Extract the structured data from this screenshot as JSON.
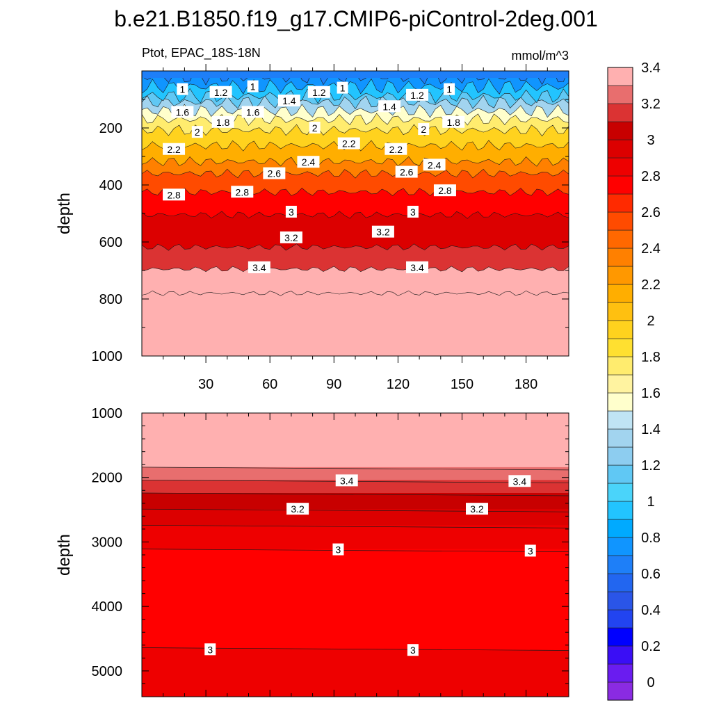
{
  "title": "b.e21.B1850.f19_g17.CMIP6-piControl-2deg.001",
  "subtitle_left": "Ptot, EPAC_18S-18N",
  "subtitle_right": "mmol/m^3",
  "chart_data": [
    {
      "type": "contour",
      "panel": "upper",
      "title": "Ptot, EPAC_18S-18N",
      "units": "mmol/m^3",
      "xlabel": "",
      "ylabel": "depth",
      "xlim": [
        0,
        200
      ],
      "ylim": [
        1000,
        0
      ],
      "xticks": [
        30,
        60,
        90,
        120,
        150,
        180
      ],
      "yticks": [
        200,
        400,
        600,
        800,
        1000
      ],
      "contour_depths": [
        {
          "level": 0.8,
          "depth": 20
        },
        {
          "level": 1.0,
          "depth": 55
        },
        {
          "level": 1.2,
          "depth": 88
        },
        {
          "level": 1.4,
          "depth": 110
        },
        {
          "level": 1.6,
          "depth": 140
        },
        {
          "level": 1.8,
          "depth": 170
        },
        {
          "level": 2.0,
          "depth": 208
        },
        {
          "level": 2.2,
          "depth": 262
        },
        {
          "level": 2.4,
          "depth": 318
        },
        {
          "level": 2.6,
          "depth": 360
        },
        {
          "level": 2.8,
          "depth": 425
        },
        {
          "level": 3.0,
          "depth": 505
        },
        {
          "level": 3.2,
          "depth": 618
        },
        {
          "level": 3.4,
          "depth": 695
        },
        {
          "level": 3.6,
          "depth": 780
        }
      ],
      "contour_labels": [
        {
          "text": "1",
          "x": 19,
          "depth": 65
        },
        {
          "text": "1.2",
          "x": 37,
          "depth": 75
        },
        {
          "text": "1",
          "x": 52,
          "depth": 55
        },
        {
          "text": "1.4",
          "x": 69,
          "depth": 105
        },
        {
          "text": "1.2",
          "x": 83,
          "depth": 75
        },
        {
          "text": "1",
          "x": 94,
          "depth": 60
        },
        {
          "text": "1.4",
          "x": 116,
          "depth": 125
        },
        {
          "text": "1.2",
          "x": 129,
          "depth": 85
        },
        {
          "text": "1",
          "x": 144,
          "depth": 65
        },
        {
          "text": "1.6",
          "x": 19,
          "depth": 145
        },
        {
          "text": "1.6",
          "x": 52,
          "depth": 145
        },
        {
          "text": "1.8",
          "x": 38,
          "depth": 180
        },
        {
          "text": "1.8",
          "x": 146,
          "depth": 180
        },
        {
          "text": "2",
          "x": 26,
          "depth": 215
        },
        {
          "text": "2",
          "x": 81,
          "depth": 200
        },
        {
          "text": "2",
          "x": 132,
          "depth": 205
        },
        {
          "text": "2.2",
          "x": 15,
          "depth": 275
        },
        {
          "text": "2.2",
          "x": 97,
          "depth": 255
        },
        {
          "text": "2.2",
          "x": 119,
          "depth": 275
        },
        {
          "text": "2.4",
          "x": 78,
          "depth": 320
        },
        {
          "text": "2.4",
          "x": 137,
          "depth": 330
        },
        {
          "text": "2.6",
          "x": 62,
          "depth": 360
        },
        {
          "text": "2.6",
          "x": 124,
          "depth": 355
        },
        {
          "text": "2.8",
          "x": 15,
          "depth": 435
        },
        {
          "text": "2.8",
          "x": 47,
          "depth": 425
        },
        {
          "text": "2.8",
          "x": 142,
          "depth": 420
        },
        {
          "text": "3",
          "x": 70,
          "depth": 495
        },
        {
          "text": "3",
          "x": 127,
          "depth": 495
        },
        {
          "text": "3.2",
          "x": 70,
          "depth": 585
        },
        {
          "text": "3.2",
          "x": 113,
          "depth": 565
        },
        {
          "text": "3.4",
          "x": 55,
          "depth": 690
        },
        {
          "text": "3.4",
          "x": 129,
          "depth": 690
        }
      ]
    },
    {
      "type": "contour",
      "panel": "lower",
      "xlabel": "",
      "ylabel": "depth",
      "xlim": [
        0,
        200
      ],
      "ylim": [
        5400,
        1000
      ],
      "yticks": [
        1000,
        2000,
        3000,
        4000,
        5000
      ],
      "contour_depths": [
        {
          "level": 3.6,
          "depth": 1840
        },
        {
          "level": 3.4,
          "depth": 2040
        },
        {
          "level": 3.3,
          "depth": 2240
        },
        {
          "level": 3.2,
          "depth": 2490
        },
        {
          "level": 3.1,
          "depth": 2740
        },
        {
          "level": 3.0,
          "depth": 3110
        },
        {
          "level": 3.0,
          "depth": 4640
        }
      ],
      "contour_labels": [
        {
          "text": "3.4",
          "x": 96,
          "depth": 2050
        },
        {
          "text": "3.4",
          "x": 177,
          "depth": 2060
        },
        {
          "text": "3.2",
          "x": 73,
          "depth": 2490
        },
        {
          "text": "3.2",
          "x": 157,
          "depth": 2490
        },
        {
          "text": "3",
          "x": 92,
          "depth": 3120
        },
        {
          "text": "3",
          "x": 182,
          "depth": 3140
        },
        {
          "text": "3",
          "x": 32,
          "depth": 4670
        },
        {
          "text": "3",
          "x": 127,
          "depth": 4680
        }
      ]
    }
  ],
  "colorbar": {
    "labels": [
      "0",
      "0.2",
      "0.4",
      "0.6",
      "0.8",
      "1",
      "1.2",
      "1.4",
      "1.6",
      "1.8",
      "2",
      "2.2",
      "2.4",
      "2.6",
      "2.8",
      "3",
      "3.2",
      "3.4"
    ],
    "colors": [
      "#8a2be2",
      "#6a1cf0",
      "#3a0ef5",
      "#0000ff",
      "#2244f0",
      "#2a55e8",
      "#2266f0",
      "#1e7ff8",
      "#1095ff",
      "#00aaff",
      "#22c4ff",
      "#4ad4fa",
      "#60c8f4",
      "#8dcdf0",
      "#a2d4ef",
      "#c0e4f4",
      "#ffffcc",
      "#fff3a0",
      "#ffec6e",
      "#ffe030",
      "#ffd21e",
      "#ffc010",
      "#ffae00",
      "#ff9800",
      "#ff8000",
      "#ff6800",
      "#ff4b00",
      "#ff2a00",
      "#ff0000",
      "#ee0000",
      "#dc0000",
      "#c80000",
      "#db3333",
      "#e86e6e",
      "#ffb0b0"
    ]
  }
}
